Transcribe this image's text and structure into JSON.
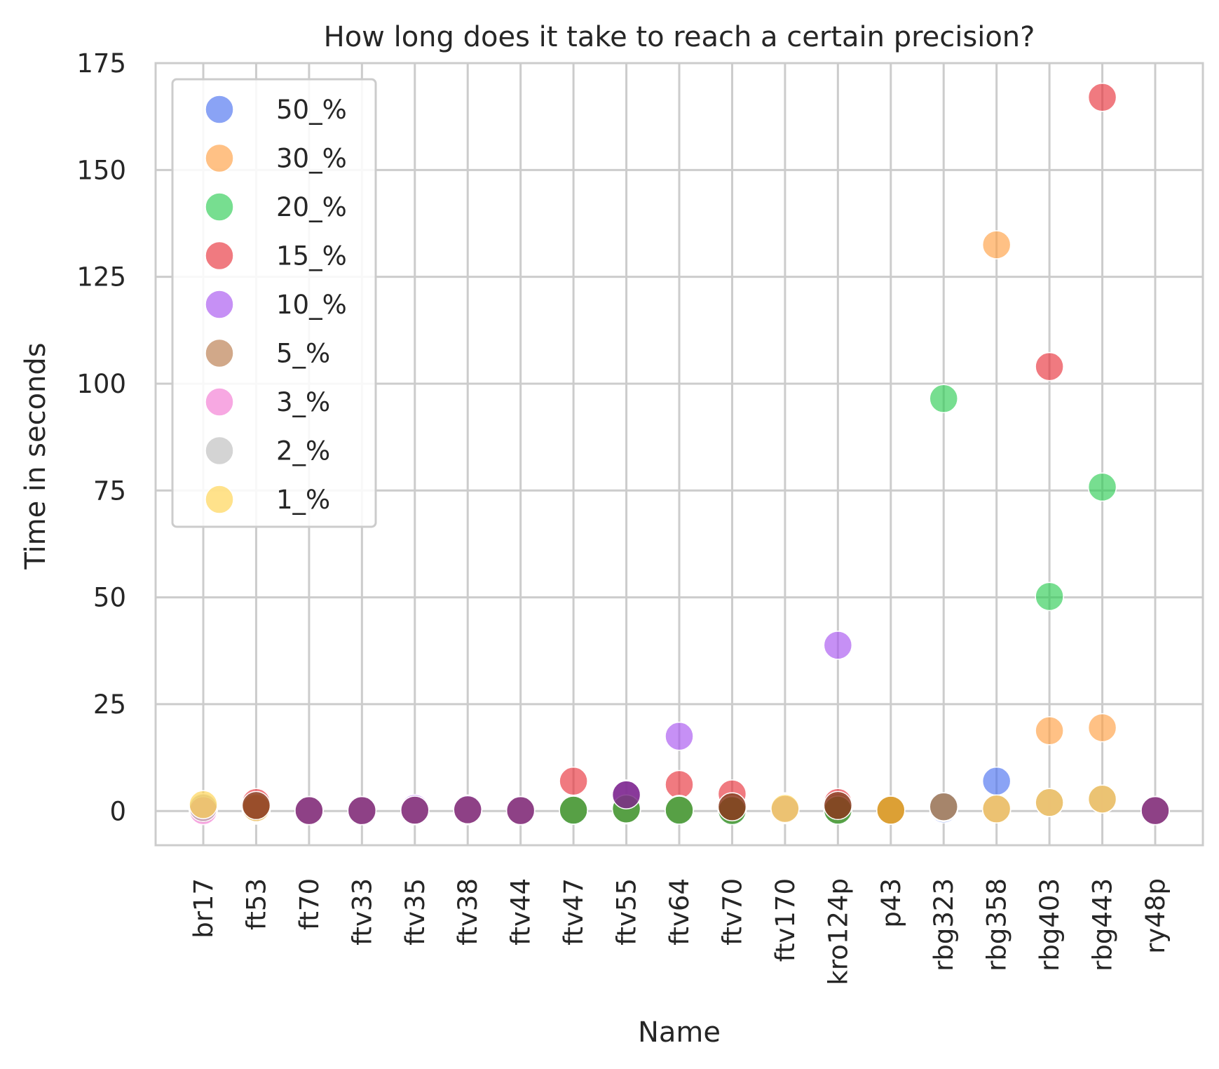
{
  "chart_data": {
    "type": "scatter",
    "title": "How long does it take to reach a certain precision?",
    "xlabel": "Name",
    "ylabel": "Time in seconds",
    "ylim": [
      -8,
      175
    ],
    "yticks": [
      0,
      25,
      50,
      75,
      100,
      125,
      150,
      175
    ],
    "categories": [
      "br17",
      "ft53",
      "ft70",
      "ftv33",
      "ftv35",
      "ftv38",
      "ftv44",
      "ftv47",
      "ftv55",
      "ftv64",
      "ftv70",
      "ftv170",
      "kro124p",
      "p43",
      "rbg323",
      "rbg358",
      "rbg403",
      "rbg443",
      "ry48p"
    ],
    "grid": true,
    "legend_position": "upper-left",
    "series": [
      {
        "name": "50_%",
        "color": "#4c72f0",
        "values": [
          0.2,
          0.2,
          0.1,
          0.1,
          0.1,
          0.1,
          0.1,
          0.2,
          0.3,
          0.3,
          0.3,
          0.3,
          0.3,
          0.2,
          0.5,
          7.0,
          2.0,
          2.8,
          0.1
        ]
      },
      {
        "name": "30_%",
        "color": "#ff9f43",
        "values": [
          0.3,
          0.3,
          0.1,
          0.1,
          0.1,
          0.1,
          0.1,
          0.2,
          0.3,
          0.3,
          0.3,
          1.0,
          0.3,
          0.2,
          0.8,
          132.5,
          18.8,
          19.5,
          0.1
        ]
      },
      {
        "name": "20_%",
        "color": "#2ecc54",
        "values": [
          0.3,
          0.4,
          0.1,
          0.1,
          0.1,
          0.1,
          0.1,
          0.3,
          0.4,
          0.4,
          0.3,
          0.4,
          0.3,
          0.2,
          96.5,
          0.5,
          50.2,
          75.8,
          0.1
        ]
      },
      {
        "name": "15_%",
        "color": "#e8323c",
        "values": [
          0.4,
          2.0,
          0.1,
          0.1,
          0.1,
          0.1,
          0.1,
          7.0,
          0.5,
          6.2,
          4.0,
          0.4,
          2.0,
          0.2,
          0.9,
          0.5,
          104.0,
          167.0,
          0.1
        ]
      },
      {
        "name": "10_%",
        "color": "#a855f0",
        "values": [
          0.4,
          0.9,
          0.1,
          0.1,
          0.6,
          0.5,
          0.1,
          0.3,
          4.0,
          17.5,
          0.3,
          0.4,
          38.8,
          0.2,
          0.9,
          0.5,
          2.0,
          2.8,
          0.1
        ]
      },
      {
        "name": "5_%",
        "color": "#b87a4a",
        "values": [
          0.5,
          1.0,
          0.1,
          0.1,
          0.2,
          0.2,
          0.1,
          0.3,
          0.3,
          0.4,
          0.8,
          0.8,
          0.8,
          0.2,
          1.0,
          0.5,
          2.0,
          2.8,
          0.1
        ]
      },
      {
        "name": "3_%",
        "color": "#f37ad2",
        "values": [
          0.1,
          0.5,
          0.1,
          0.1,
          0.1,
          0.1,
          0.1,
          0.2,
          0.3,
          0.3,
          0.3,
          0.4,
          0.3,
          0.2,
          0.9,
          0.5,
          2.0,
          2.8,
          0.1
        ]
      },
      {
        "name": "2_%",
        "color": "#bdbdbd",
        "values": [
          0.8,
          0.6,
          0.1,
          0.1,
          0.2,
          0.2,
          0.1,
          0.2,
          0.4,
          0.3,
          0.3,
          0.4,
          0.3,
          0.2,
          0.9,
          0.5,
          2.0,
          2.8,
          0.1
        ]
      },
      {
        "name": "1_%",
        "color": "#ffd34d",
        "values": [
          1.5,
          0.8,
          0.1,
          0.1,
          0.2,
          0.2,
          0.1,
          0.3,
          0.4,
          0.3,
          0.3,
          0.6,
          0.3,
          0.2,
          0.9,
          0.5,
          2.0,
          2.8,
          0.1
        ]
      }
    ]
  },
  "overlay_points": [
    {
      "category": "ft53",
      "value": 1.3,
      "color": "#8b3a1f"
    },
    {
      "category": "ft70",
      "value": 0.1,
      "color": "#7e2a8a"
    },
    {
      "category": "ftv33",
      "value": 0.1,
      "color": "#7e2a8a"
    },
    {
      "category": "ftv35",
      "value": 0.2,
      "color": "#7e2a8a"
    },
    {
      "category": "ftv38",
      "value": 0.3,
      "color": "#7e2a8a"
    },
    {
      "category": "ftv44",
      "value": 0.1,
      "color": "#7e2a8a"
    },
    {
      "category": "ftv47",
      "value": 0.2,
      "color": "#3d9a3d"
    },
    {
      "category": "ftv55",
      "value": 0.5,
      "color": "#3d9a3d"
    },
    {
      "category": "ftv55",
      "value": 3.8,
      "color": "#7e2a8a"
    },
    {
      "category": "ftv64",
      "value": 0.2,
      "color": "#3d9a3d"
    },
    {
      "category": "ftv70",
      "value": 0.1,
      "color": "#3d9a3d"
    },
    {
      "category": "ftv70",
      "value": 1.0,
      "color": "#8b3a1f"
    },
    {
      "category": "kro124p",
      "value": 0.2,
      "color": "#3d9a3d"
    },
    {
      "category": "kro124p",
      "value": 1.3,
      "color": "#8b3a1f"
    },
    {
      "category": "p43",
      "value": 0.2,
      "color": "#d99a2a"
    },
    {
      "category": "rbg323",
      "value": 1.0,
      "color": "#9a7a6a"
    },
    {
      "category": "ry48p",
      "value": 0.1,
      "color": "#7e2a8a"
    }
  ]
}
